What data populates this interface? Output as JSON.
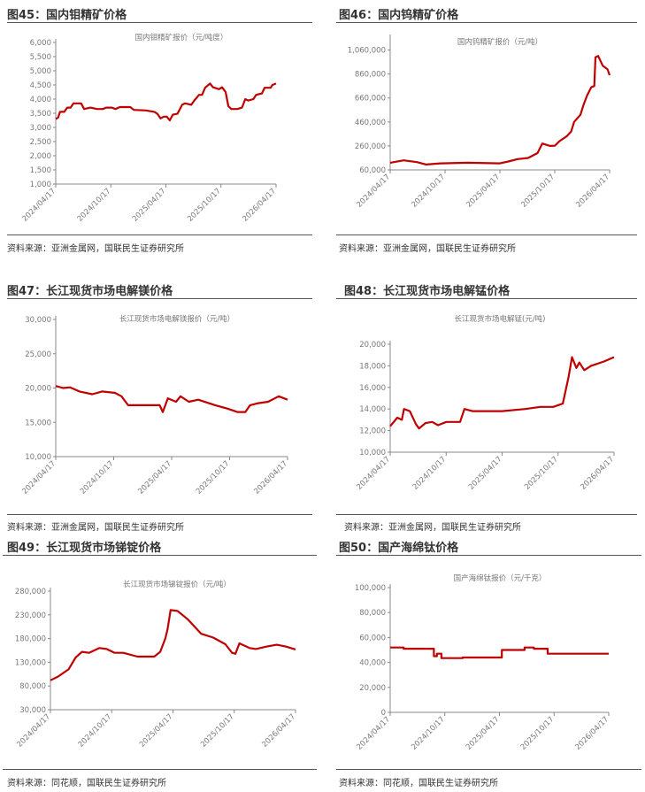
{
  "panels": [
    {
      "header": "图45：国内钼精矿价格",
      "source": "资料来源：亚洲金属网，国联民生证券研究所"
    },
    {
      "header": "图46：国内钨精矿价格",
      "source": "资料来源：亚洲金属网，国联民生证券研究所"
    },
    {
      "header": "图47：长江现货市场电解镁价格",
      "source": "资料来源：亚洲金属网，国联民生证券研究所"
    },
    {
      "header": "图48：长江现货市场电解锰价格",
      "source": "资料来源：亚洲金属网，国联民生证券研究所"
    },
    {
      "header": "图49：长江现货市场锑锭价格",
      "source": "资料来源：同花顺，国联民生证券研究所"
    },
    {
      "header": "图50：国产海绵钛价格",
      "source": "资料来源：同花顺，国联民生证券研究所"
    }
  ],
  "chart_data": [
    {
      "type": "line",
      "title": "国内钼精矿报价（元/吨度）",
      "ylim": [
        1000,
        6000
      ],
      "yticks": [
        "1,000",
        "1,500",
        "2,000",
        "2,500",
        "3,000",
        "3,500",
        "4,000",
        "4,500",
        "5,000",
        "5,500",
        "6,000"
      ],
      "xticks": [
        "2024/04/17",
        "2024/10/17",
        "2025/04/17",
        "2025/10/17",
        "2026/04/17"
      ],
      "color": "#c00000",
      "points": [
        [
          "2024-04-17",
          3300
        ],
        [
          "2024-04-25",
          3350
        ],
        [
          "2024-05-01",
          3550
        ],
        [
          "2024-05-15",
          3550
        ],
        [
          "2024-05-25",
          3700
        ],
        [
          "2024-06-05",
          3700
        ],
        [
          "2024-06-15",
          3850
        ],
        [
          "2024-07-10",
          3850
        ],
        [
          "2024-07-20",
          3650
        ],
        [
          "2024-08-10",
          3700
        ],
        [
          "2024-09-01",
          3650
        ],
        [
          "2024-09-20",
          3650
        ],
        [
          "2024-10-01",
          3700
        ],
        [
          "2024-10-20",
          3700
        ],
        [
          "2024-11-01",
          3650
        ],
        [
          "2024-11-15",
          3720
        ],
        [
          "2024-12-20",
          3720
        ],
        [
          "2025-01-01",
          3620
        ],
        [
          "2025-02-10",
          3600
        ],
        [
          "2025-03-10",
          3550
        ],
        [
          "2025-03-20",
          3480
        ],
        [
          "2025-03-30",
          3320
        ],
        [
          "2025-04-10",
          3380
        ],
        [
          "2025-04-20",
          3380
        ],
        [
          "2025-04-30",
          3250
        ],
        [
          "2025-05-10",
          3450
        ],
        [
          "2025-05-25",
          3480
        ],
        [
          "2025-06-10",
          3800
        ],
        [
          "2025-06-20",
          3850
        ],
        [
          "2025-07-10",
          3800
        ],
        [
          "2025-07-20",
          3950
        ],
        [
          "2025-08-05",
          4150
        ],
        [
          "2025-08-15",
          4150
        ],
        [
          "2025-08-25",
          4400
        ],
        [
          "2025-09-10",
          4550
        ],
        [
          "2025-09-20",
          4420
        ],
        [
          "2025-10-10",
          4350
        ],
        [
          "2025-10-20",
          4420
        ],
        [
          "2025-11-01",
          4250
        ],
        [
          "2025-11-10",
          3750
        ],
        [
          "2025-11-20",
          3650
        ],
        [
          "2025-12-10",
          3650
        ],
        [
          "2025-12-25",
          3700
        ],
        [
          "2026-01-05",
          4000
        ],
        [
          "2026-01-15",
          3950
        ],
        [
          "2026-02-01",
          4000
        ],
        [
          "2026-02-10",
          4150
        ],
        [
          "2026-03-01",
          4200
        ],
        [
          "2026-03-10",
          4400
        ],
        [
          "2026-03-30",
          4400
        ],
        [
          "2026-04-05",
          4500
        ],
        [
          "2026-04-17",
          4550
        ]
      ]
    },
    {
      "type": "line",
      "title": "国内钨精矿报价（元/吨）",
      "ylim": [
        60000,
        1160000
      ],
      "yticks": [
        "60,000",
        "260,000",
        "460,000",
        "660,000",
        "860,000",
        "1,060,000"
      ],
      "xticks": [
        "2024/04/17",
        "2024/10/17",
        "2025/04/17",
        "2025/10/17",
        "2026/04/17"
      ],
      "color": "#c00000",
      "points": [
        [
          "2024-04-17",
          120000
        ],
        [
          "2024-06-01",
          140000
        ],
        [
          "2024-07-15",
          125000
        ],
        [
          "2024-08-15",
          105000
        ],
        [
          "2024-10-01",
          115000
        ],
        [
          "2025-01-01",
          120000
        ],
        [
          "2025-04-17",
          115000
        ],
        [
          "2025-05-15",
          130000
        ],
        [
          "2025-06-15",
          150000
        ],
        [
          "2025-07-20",
          160000
        ],
        [
          "2025-08-20",
          200000
        ],
        [
          "2025-09-05",
          280000
        ],
        [
          "2025-10-01",
          260000
        ],
        [
          "2025-10-17",
          262000
        ],
        [
          "2025-11-01",
          300000
        ],
        [
          "2025-11-25",
          340000
        ],
        [
          "2025-12-10",
          380000
        ],
        [
          "2025-12-20",
          460000
        ],
        [
          "2026-01-10",
          520000
        ],
        [
          "2026-01-20",
          600000
        ],
        [
          "2026-02-01",
          680000
        ],
        [
          "2026-02-15",
          750000
        ],
        [
          "2026-02-25",
          760000
        ],
        [
          "2026-03-01",
          1000000
        ],
        [
          "2026-03-10",
          1010000
        ],
        [
          "2026-03-25",
          930000
        ],
        [
          "2026-04-10",
          900000
        ],
        [
          "2026-04-17",
          850000
        ]
      ]
    },
    {
      "type": "line",
      "title": "长江现货市场电解镁报价（元/吨）",
      "ylim": [
        10000,
        30000
      ],
      "yticks": [
        "10,000",
        "15,000",
        "20,000",
        "25,000",
        "30,000"
      ],
      "xticks": [
        "2024/04/17",
        "2024/10/17",
        "2025/04/17",
        "2025/10/17",
        "2026/04/17"
      ],
      "color": "#c00000",
      "points": [
        [
          "2024-04-17",
          20300
        ],
        [
          "2024-05-10",
          20000
        ],
        [
          "2024-06-01",
          20100
        ],
        [
          "2024-07-01",
          19500
        ],
        [
          "2024-08-10",
          19100
        ],
        [
          "2024-09-10",
          19500
        ],
        [
          "2024-10-20",
          19300
        ],
        [
          "2024-11-10",
          18800
        ],
        [
          "2024-12-01",
          17500
        ],
        [
          "2025-03-10",
          17500
        ],
        [
          "2025-03-20",
          16500
        ],
        [
          "2025-04-05",
          18500
        ],
        [
          "2025-05-01",
          18000
        ],
        [
          "2025-05-15",
          18800
        ],
        [
          "2025-06-10",
          18000
        ],
        [
          "2025-07-10",
          18300
        ],
        [
          "2025-09-01",
          17500
        ],
        [
          "2025-10-10",
          17000
        ],
        [
          "2025-11-10",
          16500
        ],
        [
          "2025-12-05",
          16500
        ],
        [
          "2025-12-20",
          17500
        ],
        [
          "2026-01-15",
          17800
        ],
        [
          "2026-02-15",
          18000
        ],
        [
          "2026-03-20",
          18800
        ],
        [
          "2026-04-17",
          18300
        ]
      ]
    },
    {
      "type": "line",
      "title": "长江现货市场电解锰(元/吨)",
      "ylim": [
        10000,
        20000
      ],
      "yticks": [
        "10,000",
        "12,000",
        "14,000",
        "16,000",
        "18,000",
        "20,000"
      ],
      "xticks": [
        "2024/04/17",
        "2024/10/17",
        "2025/04/17",
        "2025/10/17",
        "2026/04/17"
      ],
      "color": "#c00000",
      "points": [
        [
          "2024-04-17",
          12400
        ],
        [
          "2024-05-10",
          13200
        ],
        [
          "2024-05-25",
          13000
        ],
        [
          "2024-06-01",
          14000
        ],
        [
          "2024-06-20",
          13800
        ],
        [
          "2024-07-10",
          12600
        ],
        [
          "2024-07-20",
          12200
        ],
        [
          "2024-08-10",
          12700
        ],
        [
          "2024-09-01",
          12800
        ],
        [
          "2024-09-20",
          12500
        ],
        [
          "2024-10-17",
          12800
        ],
        [
          "2024-12-01",
          12800
        ],
        [
          "2024-12-15",
          14000
        ],
        [
          "2025-01-10",
          13800
        ],
        [
          "2025-04-17",
          13800
        ],
        [
          "2025-07-01",
          14000
        ],
        [
          "2025-08-20",
          14200
        ],
        [
          "2025-10-01",
          14200
        ],
        [
          "2025-11-01",
          14500
        ],
        [
          "2025-11-20",
          17000
        ],
        [
          "2025-12-01",
          18800
        ],
        [
          "2025-12-15",
          17800
        ],
        [
          "2025-12-25",
          18300
        ],
        [
          "2026-01-10",
          17600
        ],
        [
          "2026-02-01",
          18000
        ],
        [
          "2026-03-15",
          18400
        ],
        [
          "2026-04-17",
          18800
        ]
      ]
    },
    {
      "type": "line",
      "title": "长江现货市场锑锭报价（元/吨）",
      "ylim": [
        30000,
        280000
      ],
      "yticks": [
        "30,000",
        "80,000",
        "130,000",
        "180,000",
        "230,000",
        "280,000"
      ],
      "xticks": [
        "2024/04/17",
        "2024/10/17",
        "2025/04/17",
        "2025/10/17",
        "2026/04/17"
      ],
      "color": "#c00000",
      "points": [
        [
          "2024-04-17",
          92000
        ],
        [
          "2024-05-10",
          100000
        ],
        [
          "2024-06-10",
          115000
        ],
        [
          "2024-07-01",
          140000
        ],
        [
          "2024-07-20",
          152000
        ],
        [
          "2024-08-10",
          150000
        ],
        [
          "2024-09-10",
          160000
        ],
        [
          "2024-10-01",
          158000
        ],
        [
          "2024-10-25",
          150000
        ],
        [
          "2024-11-20",
          150000
        ],
        [
          "2025-01-01",
          142000
        ],
        [
          "2025-02-20",
          142000
        ],
        [
          "2025-03-10",
          152000
        ],
        [
          "2025-03-25",
          180000
        ],
        [
          "2025-04-01",
          200000
        ],
        [
          "2025-04-10",
          240000
        ],
        [
          "2025-05-01",
          238000
        ],
        [
          "2025-06-01",
          220000
        ],
        [
          "2025-07-10",
          190000
        ],
        [
          "2025-08-15",
          182000
        ],
        [
          "2025-09-20",
          168000
        ],
        [
          "2025-10-10",
          150000
        ],
        [
          "2025-10-20",
          148000
        ],
        [
          "2025-11-01",
          170000
        ],
        [
          "2025-12-01",
          160000
        ],
        [
          "2025-12-20",
          158000
        ],
        [
          "2026-01-20",
          163000
        ],
        [
          "2026-02-20",
          167000
        ],
        [
          "2026-03-20",
          163000
        ],
        [
          "2026-04-17",
          157000
        ]
      ]
    },
    {
      "type": "line",
      "title": "国产海绵钛报价（元/千克）",
      "ylim": [
        0,
        100000
      ],
      "yticks": [
        "0",
        "20,000",
        "40,000",
        "60,000",
        "80,000",
        "100,000"
      ],
      "xticks": [
        "2024/04/17",
        "2024/10/17",
        "2025/04/17",
        "2025/10/17",
        "2026/04/17"
      ],
      "color": "#c00000",
      "points": [
        [
          "2024-04-17",
          52000
        ],
        [
          "2024-06-01",
          52000
        ],
        [
          "2024-06-01",
          51000
        ],
        [
          "2024-09-10",
          51000
        ],
        [
          "2024-09-10",
          45000
        ],
        [
          "2024-09-20",
          45000
        ],
        [
          "2024-09-20",
          47000
        ],
        [
          "2024-10-05",
          47000
        ],
        [
          "2024-10-05",
          43500
        ],
        [
          "2024-12-15",
          43500
        ],
        [
          "2024-12-15",
          44000
        ],
        [
          "2025-04-25",
          44000
        ],
        [
          "2025-04-25",
          50000
        ],
        [
          "2025-07-10",
          50000
        ],
        [
          "2025-07-10",
          52000
        ],
        [
          "2025-08-10",
          52000
        ],
        [
          "2025-08-10",
          51000
        ],
        [
          "2025-09-25",
          51000
        ],
        [
          "2025-09-25",
          47000
        ],
        [
          "2026-04-17",
          47000
        ]
      ]
    }
  ]
}
